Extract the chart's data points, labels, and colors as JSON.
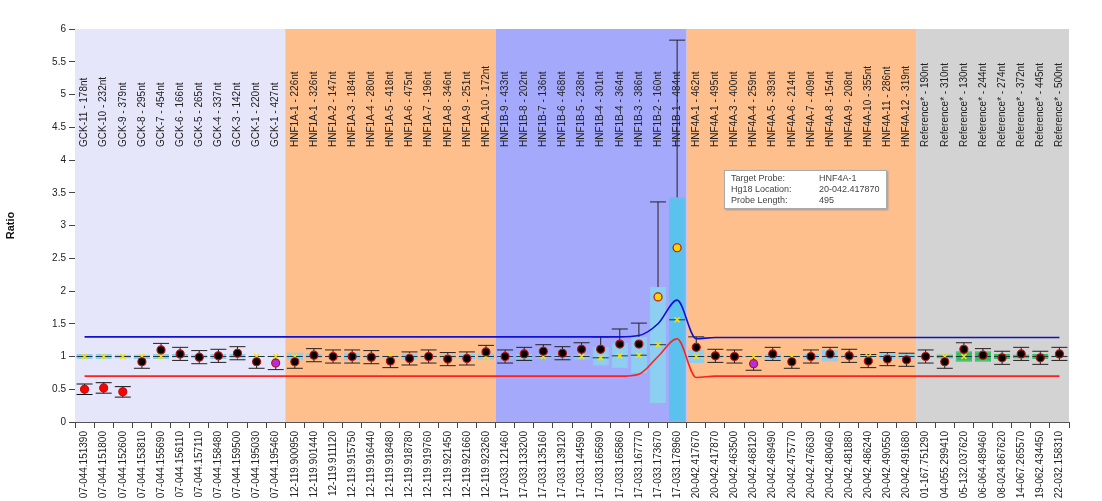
{
  "chart_data": {
    "type": "box",
    "ylabel": "Ratio",
    "ylim": [
      0,
      6
    ],
    "yticks": [
      0,
      0.5,
      1,
      1.5,
      2,
      2.5,
      3,
      3.5,
      4,
      4.5,
      5,
      5.5,
      6
    ],
    "grid": false,
    "legend": false,
    "categories": [
      "07-044.151390",
      "07-044.151800",
      "07-044.152600",
      "07-044.153810",
      "07-044.155690",
      "07-044.156110",
      "07-044.157110",
      "07-044.158480",
      "07-044.159500",
      "07-044.195030",
      "07-044.195460",
      "12-119.900950",
      "12-119.901440",
      "12-119.911120",
      "12-119.915750",
      "12-119.916440",
      "12-119.918480",
      "12-119.918780",
      "12-119.919760",
      "12-119.921450",
      "12-119.921660",
      "12-119.923260",
      "17-033.121460",
      "17-033.133200",
      "17-033.135160",
      "17-033.139120",
      "17-033.144590",
      "17-033.165690",
      "17-033.165860",
      "17-033.167770",
      "17-033.173670",
      "17-033.178960",
      "20-042.417670",
      "20-042.417870",
      "20-042.463500",
      "20-042.468120",
      "20-042.469490",
      "20-042.475770",
      "20-042.476630",
      "20-042.480460",
      "20-042.481880",
      "20-042.486240",
      "20-042.490550",
      "20-042.491680",
      "01-167.751290",
      "04-055.299410",
      "05-132.037620",
      "06-064.489460",
      "08-024.867620",
      "14-067.265570",
      "19-062.434450",
      "22-032.158310"
    ],
    "bands": [
      {
        "axis": "x",
        "from": "07-044.151390",
        "to": "07-044.195460",
        "color": "#e6e6fa"
      },
      {
        "axis": "x",
        "from": "12-119.900950",
        "to": "12-119.923260",
        "color": "#ffbf8c"
      },
      {
        "axis": "x",
        "from": "17-033.121460",
        "to": "17-033.178960",
        "color": "#a4a9fc"
      },
      {
        "axis": "x",
        "from": "20-042.417670",
        "to": "20-042.491680",
        "color": "#ffbf8c"
      },
      {
        "axis": "x",
        "from": "01-167.751290",
        "to": "22-032.158310",
        "color": "#d3d3d3"
      }
    ],
    "annotations": [
      "GCK-11 - 178nt",
      "GCK-10 - 232nt",
      "GCK-9 - 379nt",
      "GCK-8 - 295nt",
      "GCK-7 - 454nt",
      "GCK-6 - 166nt",
      "GCK-5 - 265nt",
      "GCK-4 - 337nt",
      "GCK-3 - 142nt",
      "GCK-1 - 220nt",
      "GCK-1 - 427nt",
      "HNF1A-1 - 226nt",
      "HNF1A-1 - 326nt",
      "HNF1A-2 - 147nt",
      "HNF1A-3 - 184nt",
      "HNF1A-4 - 280nt",
      "HNF1A-5 - 418nt",
      "HNF1A-6 - 475nt",
      "HNF1A-7 - 196nt",
      "HNF1A-8 - 346nt",
      "HNF1A-9 - 251nt",
      "HNF1A-10 - 172nt",
      "HNF1B-9 - 433nt",
      "HNF1B-8 - 202nt",
      "HNF1B-7 - 136nt",
      "HNF1B-6 - 468nt",
      "HNF1B-5 - 238nt",
      "HNF1B-4 - 301nt",
      "HNF1B-4 - 364nt",
      "HNF1B-3 - 386nt",
      "HNF1B-2 - 160nt",
      "HNF1B-1 - 484nt",
      "HNF4A-1 - 462nt",
      "HNF4A-1 - 495nt",
      "HNF4A-3 - 400nt",
      "HNF4A-4 - 259nt",
      "HNF4A-5 - 393nt",
      "HNF4A-6 - 214nt",
      "HNF4A-7 - 409nt",
      "HNF4A-8 - 154nt",
      "HNF4A-9 - 208nt",
      "HNF4A-10 - 355nt",
      "HNF4A-11 - 286nt",
      "HNF4A-12 - 319nt",
      "Reference* - 190nt",
      "Reference* - 310nt",
      "Reference* - 130nt",
      "Reference* - 244nt",
      "Reference* - 274nt",
      "Reference* - 372nt",
      "Reference* - 445nt",
      "Reference* - 500nt",
      "Target Probe:\tHNF4A-1",
      "Hg18 Location:\t20-042.417870",
      "Probe Length:\t495"
    ],
    "series": [
      {
        "type": "line",
        "color": "#1010d0",
        "marker": "none",
        "values": [
          1.3,
          1.3,
          1.3,
          1.3,
          1.3,
          1.3,
          1.3,
          1.3,
          1.3,
          1.3,
          1.3,
          1.3,
          1.3,
          1.3,
          1.3,
          1.3,
          1.3,
          1.3,
          1.3,
          1.3,
          1.3,
          1.3,
          1.3,
          1.3,
          1.3,
          1.3,
          1.3,
          1.3,
          1.3,
          1.32,
          1.5,
          1.86,
          1.27,
          1.29,
          1.29,
          1.29,
          1.29,
          1.29,
          1.29,
          1.29,
          1.29,
          1.29,
          1.29,
          1.29,
          1.29,
          1.29,
          1.29,
          1.29,
          1.29,
          1.29,
          1.29,
          1.29
        ]
      },
      {
        "type": "line",
        "color": "#ff2020",
        "marker": "none",
        "values": [
          0.7,
          0.7,
          0.7,
          0.7,
          0.7,
          0.7,
          0.7,
          0.7,
          0.7,
          0.7,
          0.7,
          0.7,
          0.7,
          0.7,
          0.7,
          0.7,
          0.7,
          0.7,
          0.7,
          0.7,
          0.7,
          0.7,
          0.7,
          0.7,
          0.7,
          0.7,
          0.7,
          0.7,
          0.7,
          0.73,
          1.0,
          1.27,
          0.68,
          0.7,
          0.7,
          0.7,
          0.7,
          0.7,
          0.7,
          0.7,
          0.7,
          0.7,
          0.7,
          0.7,
          0.7,
          0.7,
          0.7,
          0.7,
          0.7,
          0.7,
          0.7,
          0.7
        ]
      },
      {
        "colors": [
          "#8ccff0",
          "#8ccff0",
          "#8ccff0",
          "#8ccff0",
          "#8ccff0",
          "#8ccff0",
          "#8ccff0",
          "#8ccff0",
          "#8ccff0",
          "#8ccff0",
          "#8ccff0",
          "#8ccff0",
          "#8ccff0",
          "#8ccff0",
          "#8ccff0",
          "#8ccff0",
          "#8ccff0",
          "#8ccff0",
          "#8ccff0",
          "#8ccff0",
          "#8ccff0",
          "#8ccff0",
          "#8ccff0",
          "#8ccff0",
          "#8ccff0",
          "#8ccff0",
          "#8ccff0",
          "#8ccff0",
          "#8ccff0",
          "#8ccff0",
          "#8ccff0",
          "#5bc2ee",
          "#8ccff0",
          "#8ccff0",
          "#8ccff0",
          "#8ccff0",
          "#8ccff0",
          "#8ccff0",
          "#8ccff0",
          "#8ccff0",
          "#8ccff0",
          "#8ccff0",
          "#8ccff0",
          "#8ccff0",
          "#8ccff0",
          "#2fbf5f",
          "#2fbf5f",
          "#2fbf5f",
          "#2fbf5f",
          "#2fbf5f",
          "#2fbf5f",
          "#8ccff0"
        ],
        "boxes": [
          {
            "low": 0.96,
            "q1": 0.96,
            "median": 1,
            "q3": 1.04,
            "high": 1.04,
            "mean": 1
          },
          {
            "low": 0.96,
            "q1": 0.96,
            "median": 1,
            "q3": 1.04,
            "high": 1.04,
            "mean": 1
          },
          {
            "low": 0.97,
            "q1": 0.97,
            "median": 1,
            "q3": 1.03,
            "high": 1.03,
            "mean": 1
          },
          {
            "low": 0.82,
            "q1": 0.96,
            "median": 1,
            "q3": 1.03,
            "high": 1.03,
            "mean": 1
          },
          {
            "low": 0.96,
            "q1": 0.96,
            "median": 1,
            "q3": 1.04,
            "high": 1.2,
            "mean": 1
          },
          {
            "low": 0.94,
            "q1": 0.98,
            "median": 1,
            "q3": 1.04,
            "high": 1.14
          },
          {
            "low": 0.89,
            "q1": 0.97,
            "median": 1,
            "q3": 1.03,
            "high": 1.09
          },
          {
            "low": 0.91,
            "q1": 0.96,
            "median": 1,
            "q3": 1.04,
            "high": 1.11
          },
          {
            "low": 0.95,
            "q1": 0.97,
            "median": 1,
            "q3": 1.04,
            "high": 1.15
          },
          {
            "low": 0.82,
            "q1": 0.99,
            "median": 1,
            "q3": 1.01,
            "high": 1.01,
            "mean": 1
          },
          {
            "low": 0.8,
            "q1": 0.99,
            "median": 1,
            "q3": 1.01,
            "high": 1.01,
            "mean": 1
          },
          {
            "low": 0.82,
            "q1": 0.94,
            "median": 1,
            "q3": 1.06,
            "high": 1.06,
            "mean": 1
          },
          {
            "low": 0.92,
            "q1": 0.97,
            "median": 1,
            "q3": 1.04,
            "high": 1.12
          },
          {
            "low": 0.9,
            "q1": 0.98,
            "median": 1,
            "q3": 1.02,
            "high": 1.1
          },
          {
            "low": 0.9,
            "q1": 0.94,
            "median": 1,
            "q3": 1.06,
            "high": 1.1
          },
          {
            "low": 0.89,
            "q1": 0.97,
            "median": 1,
            "q3": 1.03,
            "high": 1.09
          },
          {
            "low": 0.83,
            "q1": 0.98,
            "median": 1,
            "q3": 1.02,
            "high": 1.02,
            "mean": 1
          },
          {
            "low": 0.87,
            "q1": 0.95,
            "median": 1,
            "q3": 1.05,
            "high": 1.07
          },
          {
            "low": 0.9,
            "q1": 0.97,
            "median": 1,
            "q3": 1.03,
            "high": 1.1
          },
          {
            "low": 0.86,
            "q1": 0.97,
            "median": 1,
            "q3": 1.03,
            "high": 1.06
          },
          {
            "low": 0.87,
            "q1": 0.96,
            "median": 1,
            "q3": 1.04,
            "high": 1.07
          },
          {
            "low": 0.95,
            "q1": 0.95,
            "median": 1,
            "q3": 1.05,
            "high": 1.17,
            "mean": 1
          },
          {
            "low": 0.9,
            "q1": 0.97,
            "median": 1,
            "q3": 1.03,
            "high": 1.1
          },
          {
            "low": 0.94,
            "q1": 0.96,
            "median": 1,
            "q3": 1.04,
            "high": 1.14
          },
          {
            "low": 0.97,
            "q1": 0.97,
            "median": 1,
            "q3": 1.03,
            "high": 1.18,
            "mean": 1
          },
          {
            "low": 0.95,
            "q1": 0.97,
            "median": 1,
            "q3": 1.03,
            "high": 1.15
          },
          {
            "low": 0.95,
            "q1": 0.95,
            "median": 1,
            "q3": 1.03,
            "high": 1.21,
            "mean": 1
          },
          {
            "low": 0.86,
            "q1": 0.86,
            "median": 0.98,
            "q3": 1.15,
            "high": 1.3,
            "mean": 0.98
          },
          {
            "low": 0.82,
            "q1": 0.82,
            "median": 1.01,
            "q3": 1.21,
            "high": 1.42,
            "mean": 1.01
          },
          {
            "low": 0.75,
            "q1": 0.75,
            "median": 1.02,
            "q3": 1.3,
            "high": 1.51,
            "mean": 1.02
          },
          {
            "low": 0.29,
            "q1": 0.29,
            "median": 1.18,
            "q3": 2.06,
            "high": 3.36,
            "mean": 1.18
          },
          {
            "low": 0,
            "q1": 0,
            "median": 1.56,
            "q3": 3.43,
            "high": 5.83,
            "mean": 1.56
          },
          {
            "low": 0.9,
            "q1": 0.9,
            "median": 1,
            "q3": 1.11,
            "high": 1.3,
            "mean": 1
          },
          {
            "low": 0.91,
            "q1": 0.97,
            "median": 1,
            "q3": 1.03,
            "high": 1.11
          },
          {
            "low": 0.9,
            "q1": 0.98,
            "median": 1,
            "q3": 1.02,
            "high": 1.1
          },
          {
            "low": 0.79,
            "q1": 0.99,
            "median": 1,
            "q3": 1.01,
            "high": 1.01,
            "mean": 1
          },
          {
            "low": 0.94,
            "q1": 0.96,
            "median": 1,
            "q3": 1.04,
            "high": 1.14
          },
          {
            "low": 0.82,
            "q1": 0.98,
            "median": 1,
            "q3": 1.02,
            "high": 1.02,
            "mean": 1
          },
          {
            "low": 0.9,
            "q1": 0.96,
            "median": 1,
            "q3": 1.04,
            "high": 1.1
          },
          {
            "low": 0.92,
            "q1": 0.92,
            "median": 1,
            "q3": 1.1,
            "high": 1.14
          },
          {
            "low": 0.91,
            "q1": 0.97,
            "median": 1,
            "q3": 1.03,
            "high": 1.11
          },
          {
            "low": 0.83,
            "q1": 0.99,
            "median": 1,
            "q3": 1.01,
            "high": 1.03,
            "mean": 1
          },
          {
            "low": 0.86,
            "q1": 0.96,
            "median": 1,
            "q3": 1.04,
            "high": 1.06
          },
          {
            "low": 0.85,
            "q1": 0.96,
            "median": 1,
            "q3": 1.04,
            "high": 1.05
          },
          {
            "low": 0.9,
            "q1": 0.98,
            "median": 1,
            "q3": 1.02,
            "high": 1.1
          },
          {
            "low": 0.82,
            "q1": 0.97,
            "median": 1,
            "q3": 1.03,
            "high": 1.03,
            "mean": 1
          },
          {
            "low": 0.92,
            "q1": 0.92,
            "median": 1,
            "q3": 1.08,
            "high": 1.21,
            "mean": 1
          },
          {
            "low": 0.92,
            "q1": 0.92,
            "median": 1,
            "q3": 1.08,
            "high": 1.12
          },
          {
            "low": 0.88,
            "q1": 0.96,
            "median": 1,
            "q3": 1.04,
            "high": 1.08
          },
          {
            "low": 0.94,
            "q1": 0.97,
            "median": 1,
            "q3": 1.03,
            "high": 1.14
          },
          {
            "low": 0.88,
            "q1": 0.96,
            "median": 1,
            "q3": 1.04,
            "high": 1.08
          },
          {
            "low": 0.94,
            "q1": 0.98,
            "median": 1,
            "q3": 1.02,
            "high": 1.14
          }
        ]
      },
      {
        "type": "scatter",
        "marker": "circle",
        "colors": [
          "#ff0000",
          "#ff0000",
          "#ff0000",
          "#000000",
          "#000000",
          "#000000",
          "#000000",
          "#000000",
          "#000000",
          "#000000",
          "#b030e0",
          "#000000",
          "#000000",
          "#000000",
          "#000000",
          "#000000",
          "#000000",
          "#000000",
          "#000000",
          "#000000",
          "#000000",
          "#000000",
          "#000000",
          "#000000",
          "#000000",
          "#000000",
          "#000000",
          "#000000",
          "#000000",
          "#000000",
          "#ffd700",
          "#ffd700",
          "#000000",
          "#000000",
          "#000000",
          "#b030e0",
          "#000000",
          "#000000",
          "#000000",
          "#000000",
          "#000000",
          "#000000",
          "#000000",
          "#000000",
          "#000000",
          "#000000",
          "#000000",
          "#000000",
          "#000000",
          "#000000",
          "#000000",
          "#000000"
        ],
        "values": [
          0.5,
          0.52,
          0.46,
          0.92,
          1.1,
          1.04,
          0.99,
          1.01,
          1.05,
          0.92,
          0.9,
          0.92,
          1.02,
          1,
          1,
          0.99,
          0.93,
          0.97,
          1,
          0.96,
          0.97,
          1.07,
          1,
          1.04,
          1.08,
          1.05,
          1.11,
          1.11,
          1.19,
          1.19,
          1.91,
          2.66,
          1.14,
          1.01,
          1,
          0.89,
          1.04,
          0.92,
          1,
          1.04,
          1.01,
          0.93,
          0.96,
          0.95,
          1,
          0.92,
          1.11,
          1.02,
          0.98,
          1.04,
          0.98,
          1.04
        ],
        "errors": [
          0.08,
          0.08,
          0.08,
          null,
          null,
          null,
          null,
          null,
          null,
          null,
          null,
          null,
          null,
          null,
          null,
          null,
          null,
          null,
          null,
          null,
          null,
          null,
          null,
          null,
          null,
          null,
          null,
          null,
          null,
          null,
          null,
          null,
          null,
          null,
          null,
          null,
          null,
          null,
          null,
          null,
          null,
          null,
          null,
          null,
          null,
          null,
          null,
          null,
          null,
          null,
          null,
          null
        ]
      }
    ]
  }
}
